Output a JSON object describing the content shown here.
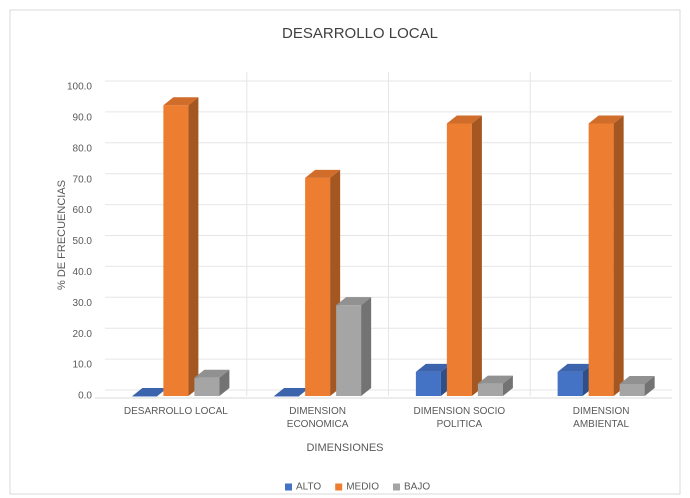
{
  "chart_data": {
    "type": "bar3d",
    "title": "DESARROLLO LOCAL",
    "x_label": "DIMENSIONES",
    "y_label": "% DE FRECUENCIAS",
    "categories": [
      "DESARROLLO LOCAL",
      "DIMENSION ECONOMICA",
      "DIMENSION SOCIO POLITICA",
      "DIMENSION AMBIENTAL"
    ],
    "series": [
      {
        "name": "ALTO",
        "color": "#4472c4",
        "values": [
          0,
          0,
          7.8,
          7.8
        ]
      },
      {
        "name": "MEDIO",
        "color": "#ed7d31",
        "values": [
          94.1,
          70.6,
          88.2,
          88.2
        ]
      },
      {
        "name": "BAJO",
        "color": "#a5a5a5",
        "values": [
          5.9,
          29.4,
          4.0,
          3.9
        ]
      }
    ],
    "ylim": [
      0,
      100
    ],
    "yticks": [
      {
        "value": 0,
        "label": "0.0"
      },
      {
        "value": 10,
        "label": "10.0"
      },
      {
        "value": 20,
        "label": "20.0"
      },
      {
        "value": 30,
        "label": "30.0"
      },
      {
        "value": 40,
        "label": "40.0"
      },
      {
        "value": 50,
        "label": "50.0"
      },
      {
        "value": 60,
        "label": "60.0"
      },
      {
        "value": 70,
        "label": "70.0"
      },
      {
        "value": 80,
        "label": "80.0"
      },
      {
        "value": 90,
        "label": "90.0"
      },
      {
        "value": 100,
        "label": "100.0"
      }
    ],
    "grid": true,
    "legend": "bottom"
  }
}
